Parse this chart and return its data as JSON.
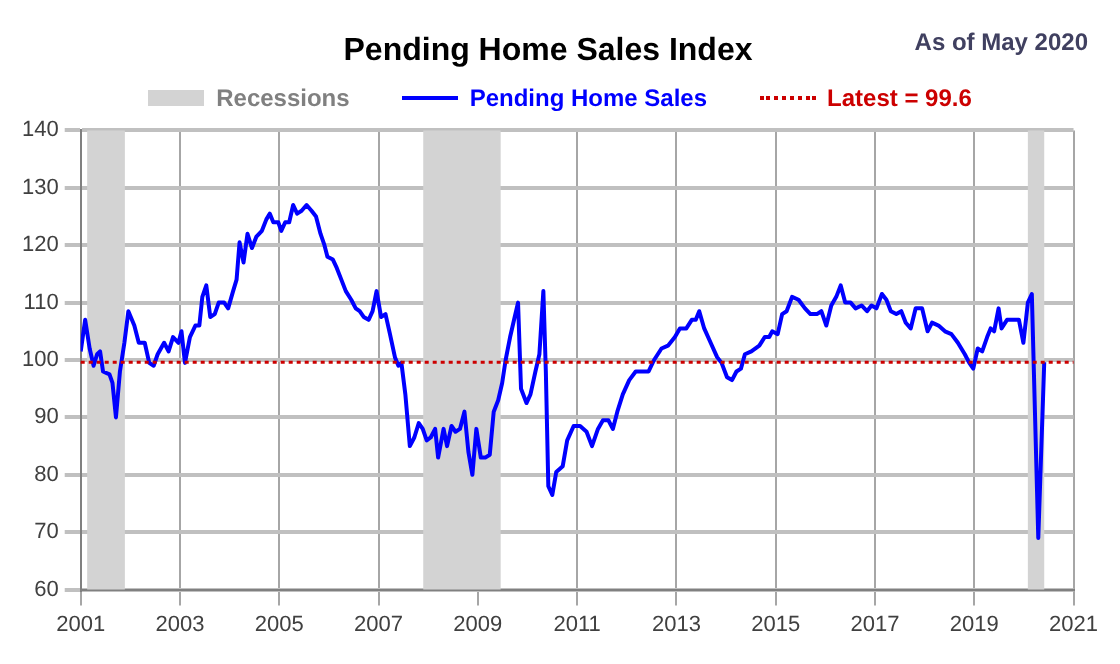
{
  "chart_data": {
    "type": "line",
    "title": "Pending Home Sales Index",
    "subtitle": "As of May 2020",
    "xlim": [
      2001,
      2021
    ],
    "xticks": [
      2001,
      2003,
      2005,
      2007,
      2009,
      2011,
      2013,
      2015,
      2017,
      2019,
      2021
    ],
    "ylim": [
      60,
      140
    ],
    "yticks": [
      60,
      70,
      80,
      90,
      100,
      110,
      120,
      130,
      140
    ],
    "grid": true,
    "legend": "top",
    "line_style": "solid",
    "marker": "none",
    "series": [
      {
        "name": "Pending Home Sales",
        "color": "#0000ff",
        "x": [
          2001.0,
          2001.09,
          2001.18,
          2001.26,
          2001.33,
          2001.39,
          2001.45,
          2001.58,
          2001.64,
          2001.71,
          2001.79,
          2001.88,
          2001.96,
          2002.08,
          2002.17,
          2002.29,
          2002.38,
          2002.47,
          2002.55,
          2002.68,
          2002.77,
          2002.86,
          2002.97,
          2003.03,
          2003.1,
          2003.2,
          2003.31,
          2003.39,
          2003.45,
          2003.53,
          2003.61,
          2003.7,
          2003.78,
          2003.89,
          2003.97,
          2004.07,
          2004.14,
          2004.2,
          2004.28,
          2004.36,
          2004.45,
          2004.54,
          2004.65,
          2004.74,
          2004.81,
          2004.88,
          2004.98,
          2005.04,
          2005.12,
          2005.2,
          2005.28,
          2005.36,
          2005.45,
          2005.55,
          2005.65,
          2005.74,
          2005.83,
          2005.91,
          2005.97,
          2006.08,
          2006.16,
          2006.25,
          2006.34,
          2006.45,
          2006.54,
          2006.62,
          2006.7,
          2006.8,
          2006.88,
          2006.96,
          2007.05,
          2007.14,
          2007.23,
          2007.33,
          2007.4,
          2007.46,
          2007.54,
          2007.63,
          2007.72,
          2007.81,
          2007.89,
          2007.97,
          2008.05,
          2008.14,
          2008.2,
          2008.31,
          2008.38,
          2008.47,
          2008.55,
          2008.64,
          2008.73,
          2008.81,
          2008.89,
          2008.97,
          2009.06,
          2009.15,
          2009.24,
          2009.32,
          2009.41,
          2009.49,
          2009.56,
          2009.65,
          2009.73,
          2009.81,
          2009.87,
          2009.98,
          2010.06,
          2010.16,
          2010.24,
          2010.32,
          2010.37,
          2010.42,
          2010.5,
          2010.58,
          2010.71,
          2010.8,
          2010.93,
          2011.06,
          2011.19,
          2011.3,
          2011.42,
          2011.52,
          2011.63,
          2011.72,
          2011.81,
          2011.92,
          2012.05,
          2012.18,
          2012.31,
          2012.44,
          2012.55,
          2012.7,
          2012.83,
          2012.97,
          2013.07,
          2013.2,
          2013.31,
          2013.39,
          2013.46,
          2013.56,
          2013.69,
          2013.82,
          2013.91,
          2014.02,
          2014.12,
          2014.21,
          2014.3,
          2014.38,
          2014.51,
          2014.67,
          2014.78,
          2014.87,
          2014.93,
          2015.04,
          2015.13,
          2015.22,
          2015.33,
          2015.46,
          2015.59,
          2015.7,
          2015.83,
          2015.92,
          2016.02,
          2016.12,
          2016.22,
          2016.31,
          2016.4,
          2016.51,
          2016.61,
          2016.73,
          2016.84,
          2016.93,
          2017.03,
          2017.14,
          2017.23,
          2017.32,
          2017.43,
          2017.53,
          2017.62,
          2017.72,
          2017.82,
          2017.95,
          2018.06,
          2018.15,
          2018.28,
          2018.41,
          2018.54,
          2018.67,
          2018.81,
          2018.9,
          2018.98,
          2019.07,
          2019.16,
          2019.26,
          2019.33,
          2019.4,
          2019.49,
          2019.55,
          2019.66,
          2019.75,
          2019.9,
          2019.99,
          2020.08,
          2020.16,
          2020.29,
          2020.41
        ],
        "values": [
          101.5,
          107,
          102,
          99,
          101,
          101.5,
          98,
          97.5,
          96,
          90,
          98,
          103,
          108.5,
          106,
          103,
          103,
          99.5,
          99,
          101,
          103,
          101.5,
          104,
          103,
          105,
          99.5,
          104,
          106,
          106,
          111,
          113,
          107.5,
          108,
          110,
          110,
          109,
          112,
          114,
          120.5,
          117,
          122,
          119.5,
          121.5,
          122.5,
          124.5,
          125.5,
          124,
          124,
          122.5,
          124,
          124,
          127,
          125.5,
          126,
          127,
          126,
          125,
          122,
          120,
          118,
          117.5,
          116,
          114,
          112,
          110.5,
          109,
          108.5,
          107.5,
          107,
          108.5,
          112,
          107.5,
          108,
          104.5,
          100.5,
          99,
          99.5,
          94,
          85,
          86.5,
          89,
          88,
          86,
          86.5,
          88,
          83,
          88,
          85,
          88.5,
          87.5,
          88,
          91,
          84,
          80,
          88,
          83,
          83,
          83.5,
          91,
          93,
          96,
          100,
          104,
          107,
          110,
          95,
          92.5,
          94,
          98,
          101,
          112,
          98,
          78,
          76.5,
          80.5,
          81.5,
          86,
          88.5,
          88.5,
          87.5,
          85,
          88,
          89.5,
          89.5,
          88,
          91,
          94,
          96.5,
          98,
          98,
          98,
          100,
          102,
          102.5,
          104,
          105.5,
          105.5,
          107,
          107,
          108.5,
          105.5,
          103,
          100.5,
          99.5,
          97,
          96.5,
          98,
          98.5,
          101,
          101.5,
          102.5,
          104,
          104,
          105,
          104.5,
          108,
          108.5,
          111,
          110.5,
          109,
          108,
          108,
          108.5,
          106,
          109.5,
          111,
          113,
          110,
          110,
          109,
          109.5,
          108.5,
          109.5,
          109,
          111.5,
          110.5,
          108.5,
          108,
          108.5,
          106.5,
          105.5,
          109,
          109,
          105,
          106.5,
          106,
          105,
          104.5,
          103,
          101,
          99.5,
          98.5,
          102,
          101.5,
          104,
          105.5,
          105,
          109,
          105.5,
          107,
          107,
          107,
          103,
          110,
          111.5,
          69,
          99.6
        ]
      }
    ],
    "ref_lines": [
      {
        "axis": "y",
        "value": 99.6,
        "label": "Latest = 99.6",
        "color": "#cc0000",
        "line_style": "dotted"
      }
    ],
    "bands": [
      {
        "axis": "x",
        "from": 2001.13,
        "to": 2001.89,
        "label": "Recessions",
        "color": "#d3d3d3"
      },
      {
        "axis": "x",
        "from": 2007.9,
        "to": 2009.46,
        "color": "#d3d3d3"
      },
      {
        "axis": "x",
        "from": 2020.08,
        "to": 2020.41,
        "color": "#d3d3d3"
      }
    ]
  }
}
